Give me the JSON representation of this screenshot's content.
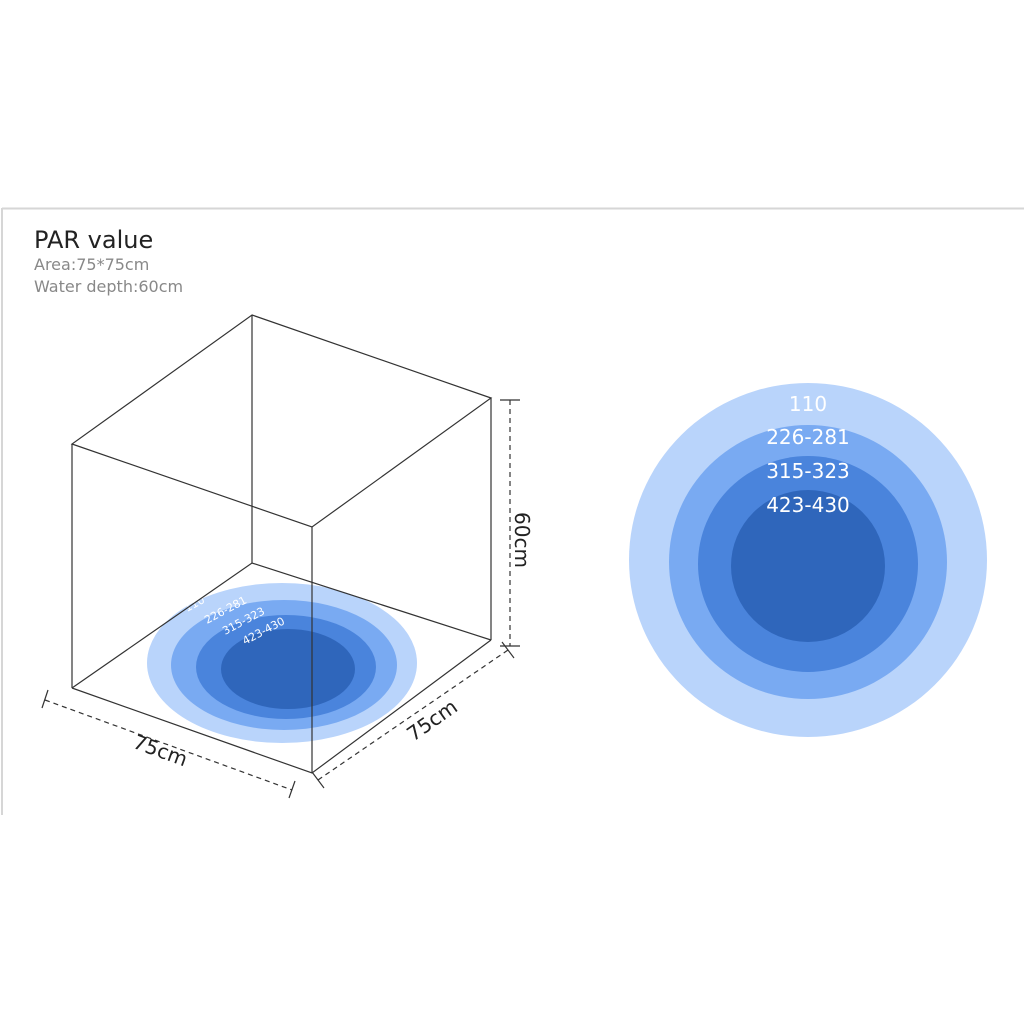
{
  "header": {
    "title": "PAR value",
    "area": "Area:75*75cm",
    "depth": "Water depth:60cm"
  },
  "dimensions": {
    "height": "60cm",
    "width": "75cm",
    "depth": "75cm"
  },
  "rings": [
    {
      "label": "110",
      "color": "#b9d4fb"
    },
    {
      "label": "226-281",
      "color": "#79aaf2"
    },
    {
      "label": "315-323",
      "color": "#4a84dc"
    },
    {
      "label": "423-430",
      "color": "#2f66bb"
    }
  ]
}
